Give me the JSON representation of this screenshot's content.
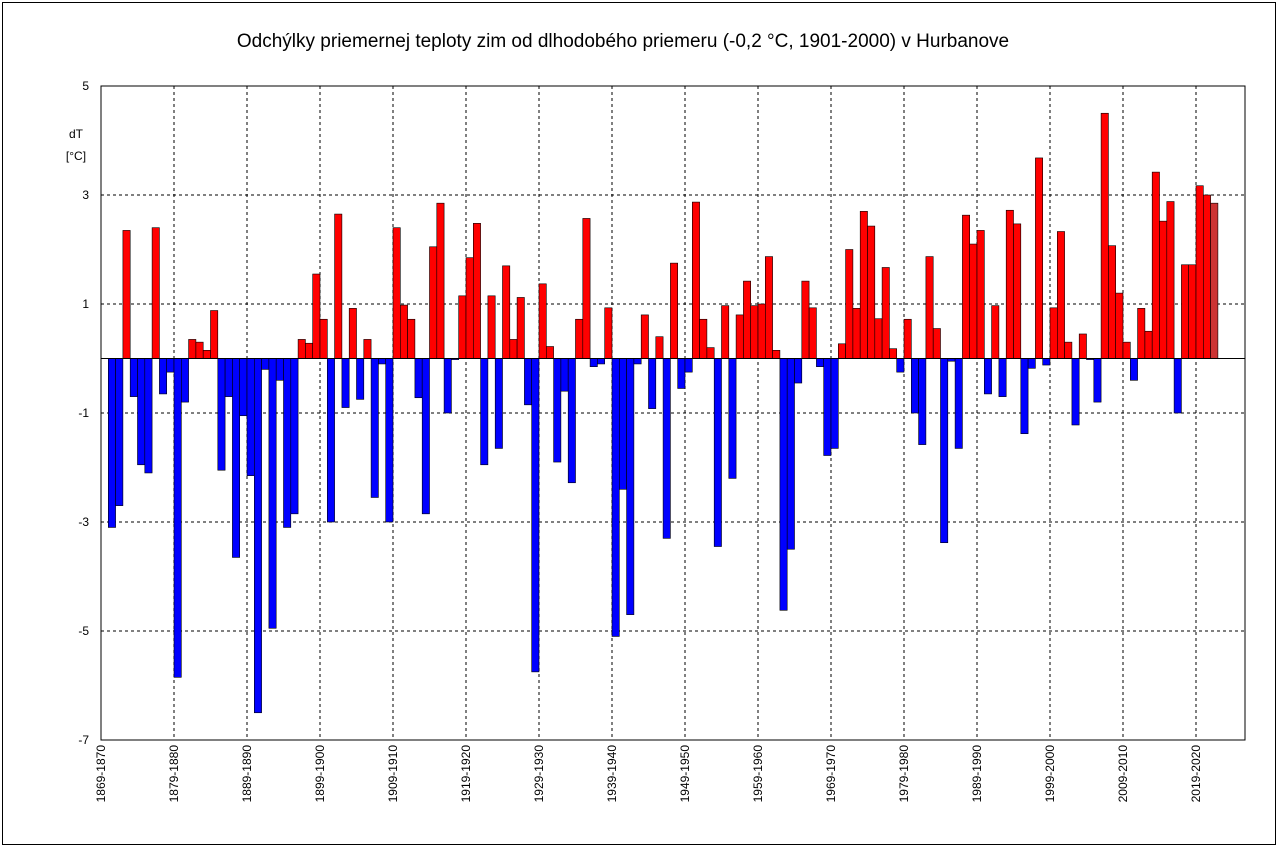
{
  "chart_data": {
    "type": "bar",
    "title": "Odchýlky priemernej teploty zim od dlhodobého priemeru (-0,2 °C, 1901-2000) v Hurbanove",
    "ylabel": "dT",
    "yunit": "[°C]",
    "categories": [
      "1869-1870",
      null,
      null,
      null,
      null,
      null,
      null,
      null,
      null,
      null,
      "1879-1880",
      null,
      null,
      null,
      null,
      null,
      null,
      null,
      null,
      null,
      "1889-1890",
      null,
      null,
      null,
      null,
      null,
      null,
      null,
      null,
      null,
      "1899-1900",
      null,
      null,
      null,
      null,
      null,
      null,
      null,
      null,
      null,
      "1909-1910",
      null,
      null,
      null,
      null,
      null,
      null,
      null,
      null,
      null,
      "1919-1920",
      null,
      null,
      null,
      null,
      null,
      null,
      null,
      null,
      null,
      "1929-1930",
      null,
      null,
      null,
      null,
      null,
      null,
      null,
      null,
      null,
      "1939-1940",
      null,
      null,
      null,
      null,
      null,
      null,
      null,
      null,
      null,
      "1949-1950",
      null,
      null,
      null,
      null,
      null,
      null,
      null,
      null,
      null,
      "1959-1960",
      null,
      null,
      null,
      null,
      null,
      null,
      null,
      null,
      null,
      "1969-1970",
      null,
      null,
      null,
      null,
      null,
      null,
      null,
      null,
      null,
      "1979-1980",
      null,
      null,
      null,
      null,
      null,
      null,
      null,
      null,
      null,
      "1989-1990",
      null,
      null,
      null,
      null,
      null,
      null,
      null,
      null,
      null,
      "1999-2000",
      null,
      null,
      null,
      null,
      null,
      null,
      null,
      null,
      null,
      "2009-2010",
      null,
      null,
      null,
      null,
      null,
      null,
      null,
      null,
      null,
      "2019-2020",
      null,
      null
    ],
    "values": [
      null,
      -3.1,
      -2.7,
      2.35,
      -0.7,
      -1.95,
      -2.1,
      2.4,
      -0.65,
      -0.25,
      -5.85,
      -0.8,
      0.35,
      0.3,
      0.15,
      0.88,
      -2.05,
      -0.7,
      -3.65,
      -1.05,
      -2.15,
      -6.5,
      -0.2,
      -4.95,
      -0.4,
      -3.1,
      -2.85,
      0.35,
      0.28,
      1.55,
      0.72,
      -3.0,
      2.65,
      -0.9,
      0.92,
      -0.75,
      0.35,
      -2.55,
      -0.1,
      -3.0,
      2.4,
      0.98,
      0.72,
      -0.72,
      -2.85,
      2.05,
      2.85,
      -1.0,
      -0.02,
      1.15,
      1.85,
      2.48,
      -1.95,
      1.15,
      -1.65,
      1.7,
      0.35,
      1.12,
      -0.85,
      -5.75,
      1.37,
      0.22,
      -1.9,
      -0.6,
      -2.28,
      0.72,
      2.57,
      -0.15,
      -0.1,
      0.93,
      -5.1,
      -2.4,
      -4.7,
      -0.1,
      0.8,
      -0.92,
      0.4,
      -3.3,
      1.75,
      -0.55,
      -0.25,
      2.87,
      0.72,
      0.2,
      -3.45,
      0.97,
      -2.2,
      0.8,
      1.42,
      0.97,
      1.0,
      1.87,
      0.15,
      -4.62,
      -3.5,
      -0.45,
      1.42,
      0.93,
      -0.15,
      -1.78,
      -1.65,
      0.27,
      2.0,
      0.92,
      2.7,
      2.43,
      0.73,
      1.67,
      0.18,
      -0.25,
      0.72,
      -1.0,
      -1.58,
      1.87,
      0.55,
      -3.38,
      -0.05,
      -1.65,
      2.63,
      2.1,
      2.35,
      -0.65,
      0.97,
      -0.7,
      2.72,
      2.47,
      -1.38,
      -0.18,
      3.68,
      -0.12,
      0.93,
      2.33,
      0.3,
      -1.22,
      0.45,
      -0.02,
      -0.8,
      4.5,
      2.07,
      1.2,
      0.3,
      -0.4,
      0.92,
      0.5,
      3.42,
      2.52,
      2.88,
      -1.0,
      1.72,
      1.72,
      3.17,
      3.0,
      2.85
    ],
    "positive_color": "#ff0000",
    "negative_color": "#0000ff",
    "last_color": "#cc3333",
    "ylim": [
      -7,
      5
    ],
    "yticks": [
      5,
      3,
      1,
      -1,
      -3,
      -5,
      -7
    ],
    "grid": true
  }
}
